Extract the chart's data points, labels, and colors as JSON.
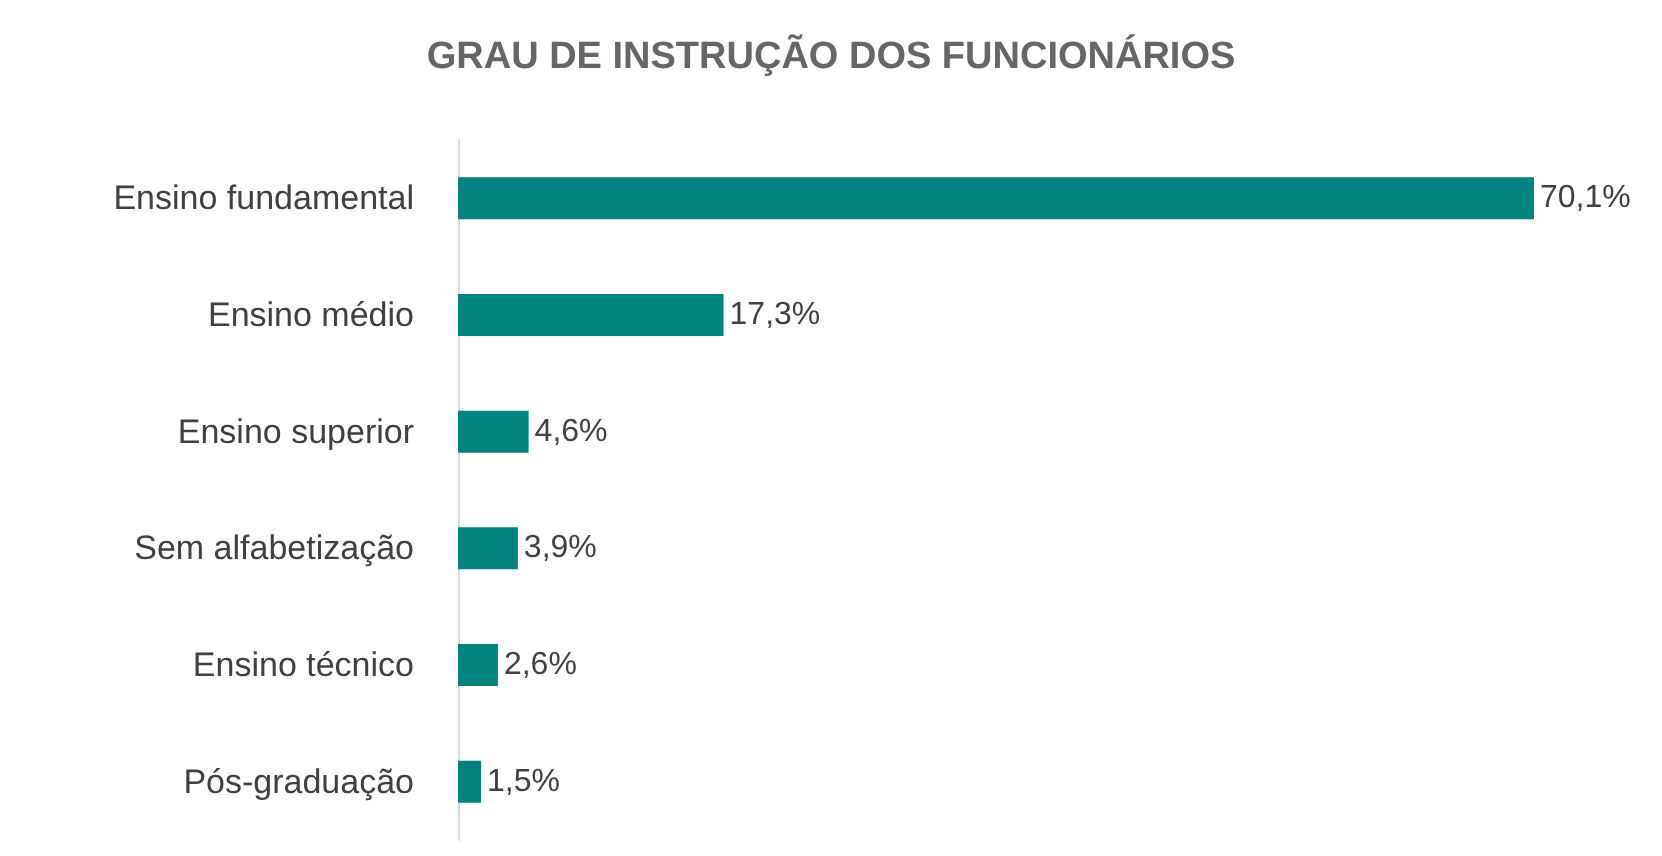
{
  "chart_data": {
    "type": "bar",
    "orientation": "horizontal",
    "title": "GRAU DE INSTRUÇÃO DOS FUNCIONÁRIOS",
    "categories": [
      "Ensino fundamental",
      "Ensino médio",
      "Ensino superior",
      "Sem alfabetização",
      "Ensino técnico",
      "Pós-graduação"
    ],
    "values": [
      70.1,
      17.3,
      4.6,
      3.9,
      2.6,
      1.5
    ],
    "value_labels": [
      "70,1%",
      "17,3%",
      "4,6%",
      "3,9%",
      "2,6%",
      "1,5%"
    ],
    "color": "#00827f"
  }
}
